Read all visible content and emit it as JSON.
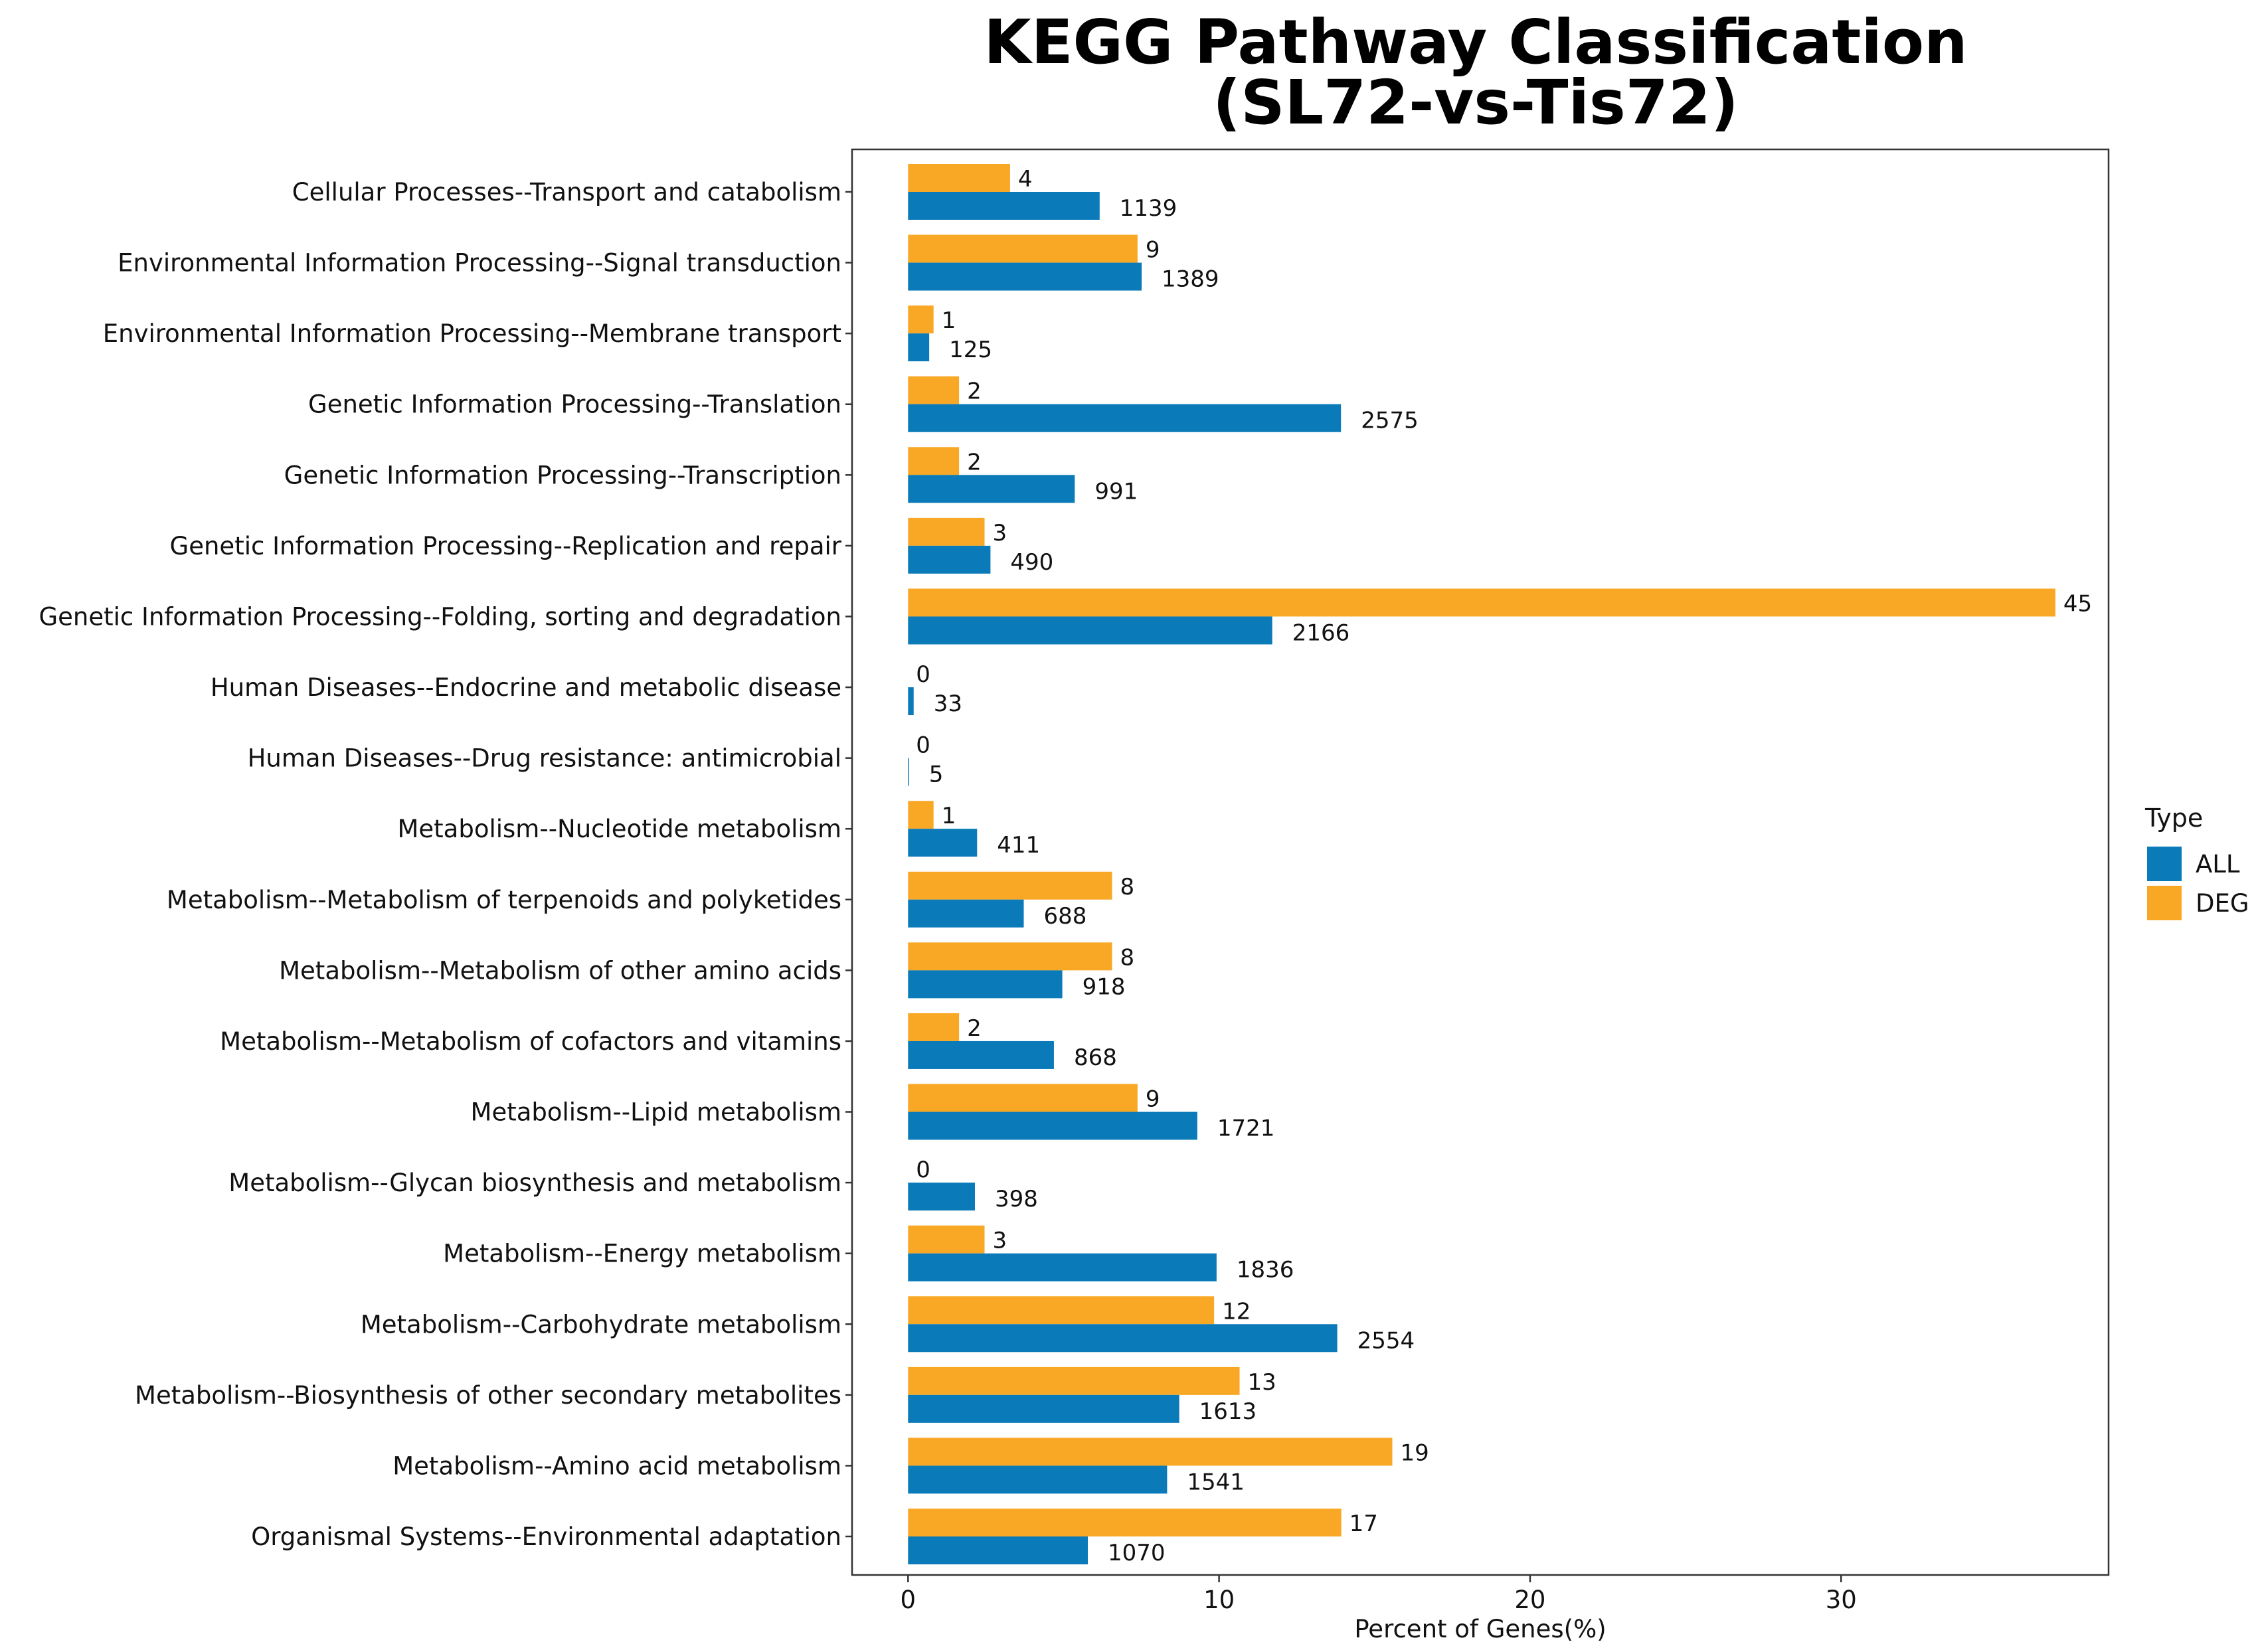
{
  "chart_data": {
    "type": "bar",
    "orientation": "horizontal",
    "title_line1": "KEGG Pathway Classification",
    "title_line2": "(SL72-vs-Tis72)",
    "xlabel": "Percent of Genes(%)",
    "ylabel": "",
    "xlim": [
      -1.8,
      38.6
    ],
    "xticks": [
      0,
      10,
      20,
      30
    ],
    "grid": false,
    "legend_title": "Type",
    "legend_position": "right",
    "categories": [
      "Cellular Processes--Transport and catabolism",
      "Environmental Information Processing--Signal transduction",
      "Environmental Information Processing--Membrane transport",
      "Genetic Information Processing--Translation",
      "Genetic Information Processing--Transcription",
      "Genetic Information Processing--Replication and repair",
      "Genetic Information Processing--Folding, sorting and degradation",
      "Human Diseases--Endocrine and metabolic disease",
      "Human Diseases--Drug resistance: antimicrobial",
      "Metabolism--Nucleotide metabolism",
      "Metabolism--Metabolism of terpenoids and polyketides",
      "Metabolism--Metabolism of other amino acids",
      "Metabolism--Metabolism of cofactors and vitamins",
      "Metabolism--Lipid metabolism",
      "Metabolism--Glycan biosynthesis and metabolism",
      "Metabolism--Energy metabolism",
      "Metabolism--Carbohydrate metabolism",
      "Metabolism--Biosynthesis of other secondary metabolites",
      "Metabolism--Amino acid metabolism",
      "Organismal Systems--Environmental adaptation"
    ],
    "series": [
      {
        "name": "ALL",
        "color": "#0a7ab8",
        "percent": [
          6.16,
          7.51,
          0.68,
          13.92,
          5.36,
          2.65,
          11.71,
          0.18,
          0.03,
          2.22,
          3.72,
          4.96,
          4.69,
          9.3,
          2.15,
          9.92,
          13.8,
          8.72,
          8.33,
          5.78
        ],
        "labels": [
          "1139",
          "1389",
          "125",
          "2575",
          "991",
          "490",
          "2166",
          "33",
          "5",
          "411",
          "688",
          "918",
          "868",
          "1721",
          "398",
          "1836",
          "2554",
          "1613",
          "1541",
          "1070"
        ]
      },
      {
        "name": "DEG",
        "color": "#f9a825",
        "percent": [
          3.28,
          7.38,
          0.82,
          1.64,
          1.64,
          2.46,
          36.89,
          0,
          0,
          0.82,
          6.56,
          6.56,
          1.64,
          7.38,
          0,
          2.46,
          9.84,
          10.66,
          15.57,
          13.93
        ],
        "labels": [
          "4",
          "9",
          "1",
          "2",
          "2",
          "3",
          "45",
          "0",
          "0",
          "1",
          "8",
          "8",
          "2",
          "9",
          "0",
          "3",
          "12",
          "13",
          "19",
          "17"
        ]
      }
    ]
  }
}
